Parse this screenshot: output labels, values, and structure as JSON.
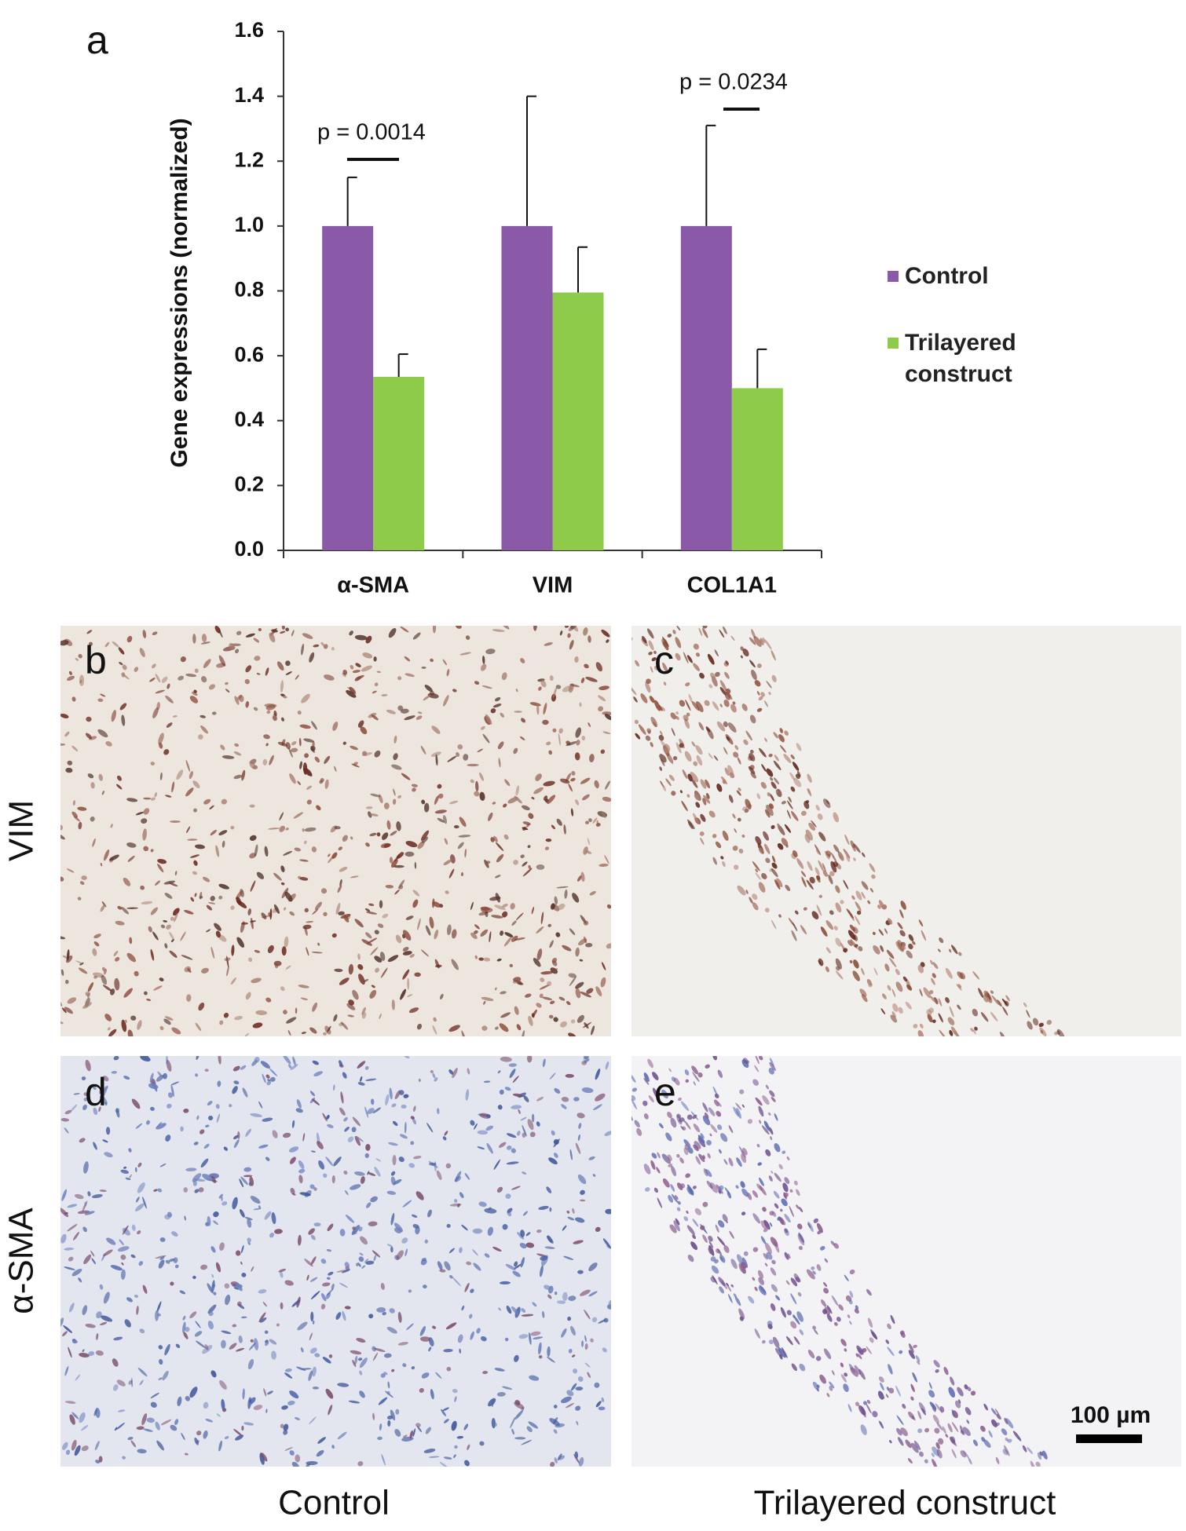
{
  "chart_data": {
    "type": "bar",
    "y_label": "Gene expressions (normalized)",
    "categories": [
      "α-SMA",
      "VIM",
      "COL1A1"
    ],
    "series": [
      {
        "name": "Control",
        "color": "#8a5aa8",
        "values": [
          1.0,
          1.0,
          1.0
        ],
        "errors": [
          0.15,
          0.4,
          0.31
        ]
      },
      {
        "name": "Trilayered construct",
        "color": "#8fcb4a",
        "values": [
          0.535,
          0.795,
          0.5
        ],
        "errors": [
          0.07,
          0.14,
          0.12
        ]
      }
    ],
    "ylim": [
      0,
      1.6
    ],
    "yticks": [
      {
        "value": 0,
        "label": "0.0"
      },
      0.2,
      0.4,
      0.6,
      0.8,
      {
        "value": 1,
        "label": "1.0"
      },
      1.2,
      1.4,
      1.6
    ],
    "annotations": [
      "p = 0.0014",
      "p = 0.0234"
    ],
    "legend": "right"
  },
  "panel_labels": [
    "a",
    "b",
    "c",
    "d",
    "e"
  ],
  "row_labels": [
    "VIM",
    "α-SMA"
  ],
  "column_labels": [
    "Control",
    "Trilayered construct"
  ],
  "scale_bar": "100 µm"
}
